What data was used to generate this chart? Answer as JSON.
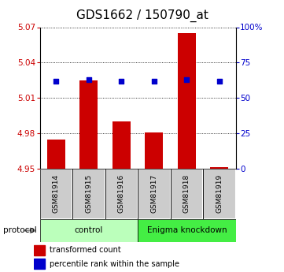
{
  "title": "GDS1662 / 150790_at",
  "samples": [
    "GSM81914",
    "GSM81915",
    "GSM81916",
    "GSM81917",
    "GSM81918",
    "GSM81919"
  ],
  "bar_values": [
    4.975,
    5.025,
    4.99,
    4.981,
    5.065,
    4.951
  ],
  "bar_baseline": 4.95,
  "percentile_values": [
    62,
    63,
    62,
    62,
    63,
    62
  ],
  "left_ylim": [
    4.95,
    5.07
  ],
  "right_ylim": [
    0,
    100
  ],
  "left_yticks": [
    4.95,
    4.98,
    5.01,
    5.04,
    5.07
  ],
  "right_yticks": [
    0,
    25,
    50,
    75,
    100
  ],
  "right_yticklabels": [
    "0",
    "25",
    "50",
    "75",
    "100%"
  ],
  "bar_color": "#cc0000",
  "dot_color": "#0000cc",
  "groups": [
    {
      "label": "control",
      "start": 0,
      "end": 2,
      "color": "#bbffbb"
    },
    {
      "label": "Enigma knockdown",
      "start": 3,
      "end": 5,
      "color": "#44ee44"
    }
  ],
  "protocol_label": "protocol",
  "legend_bar_label": "transformed count",
  "legend_dot_label": "percentile rank within the sample",
  "title_fontsize": 11,
  "tick_label_color_left": "#cc0000",
  "tick_label_color_right": "#0000cc",
  "sample_box_color": "#cccccc",
  "background_color": "#ffffff"
}
